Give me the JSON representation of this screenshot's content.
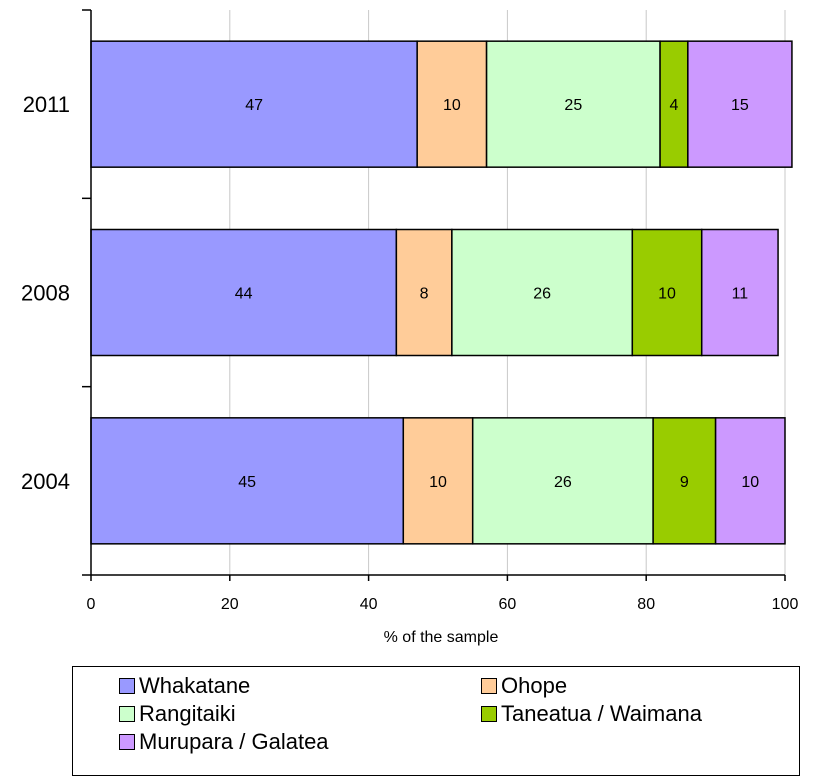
{
  "chart_data": {
    "type": "bar",
    "orientation": "horizontal",
    "stacked": true,
    "categories": [
      "2011",
      "2008",
      "2004"
    ],
    "series": [
      {
        "name": "Whakatane",
        "color": "#9999ff",
        "values": [
          47,
          44,
          45
        ]
      },
      {
        "name": "Ohope",
        "color": "#ffcc99",
        "values": [
          10,
          8,
          10
        ]
      },
      {
        "name": "Rangitaiki",
        "color": "#ccffcc",
        "values": [
          25,
          26,
          26
        ]
      },
      {
        "name": "Taneatua / Waimana",
        "color": "#99cc00",
        "values": [
          4,
          10,
          9
        ]
      },
      {
        "name": "Murupara / Galatea",
        "color": "#cc99ff",
        "values": [
          15,
          11,
          10
        ]
      }
    ],
    "xlabel": "% of the sample",
    "xlim": [
      0,
      100
    ],
    "xticks": [
      0,
      20,
      40,
      60,
      80,
      100
    ],
    "grid": "vertical",
    "legend_position": "bottom"
  }
}
